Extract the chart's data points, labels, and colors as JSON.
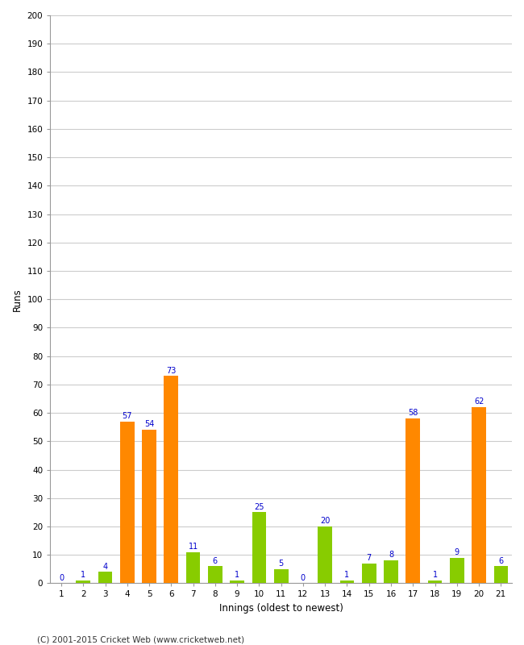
{
  "innings": [
    1,
    2,
    3,
    4,
    5,
    6,
    7,
    8,
    9,
    10,
    11,
    12,
    13,
    14,
    15,
    16,
    17,
    18,
    19,
    20,
    21
  ],
  "values": [
    0,
    1,
    4,
    57,
    54,
    73,
    11,
    6,
    1,
    25,
    5,
    0,
    20,
    1,
    7,
    8,
    58,
    1,
    9,
    62,
    6
  ],
  "colors": [
    "#88cc00",
    "#88cc00",
    "#88cc00",
    "#ff8800",
    "#ff8800",
    "#ff8800",
    "#88cc00",
    "#88cc00",
    "#88cc00",
    "#88cc00",
    "#88cc00",
    "#88cc00",
    "#88cc00",
    "#88cc00",
    "#88cc00",
    "#88cc00",
    "#ff8800",
    "#88cc00",
    "#88cc00",
    "#ff8800",
    "#88cc00"
  ],
  "xlabel": "Innings (oldest to newest)",
  "ylabel": "Runs",
  "ylim": [
    0,
    200
  ],
  "yticks": [
    0,
    10,
    20,
    30,
    40,
    50,
    60,
    70,
    80,
    90,
    100,
    110,
    120,
    130,
    140,
    150,
    160,
    170,
    180,
    190,
    200
  ],
  "label_color": "#0000cc",
  "bg_color": "#ffffff",
  "grid_color": "#cccccc",
  "footer": "(C) 2001-2015 Cricket Web (www.cricketweb.net)"
}
